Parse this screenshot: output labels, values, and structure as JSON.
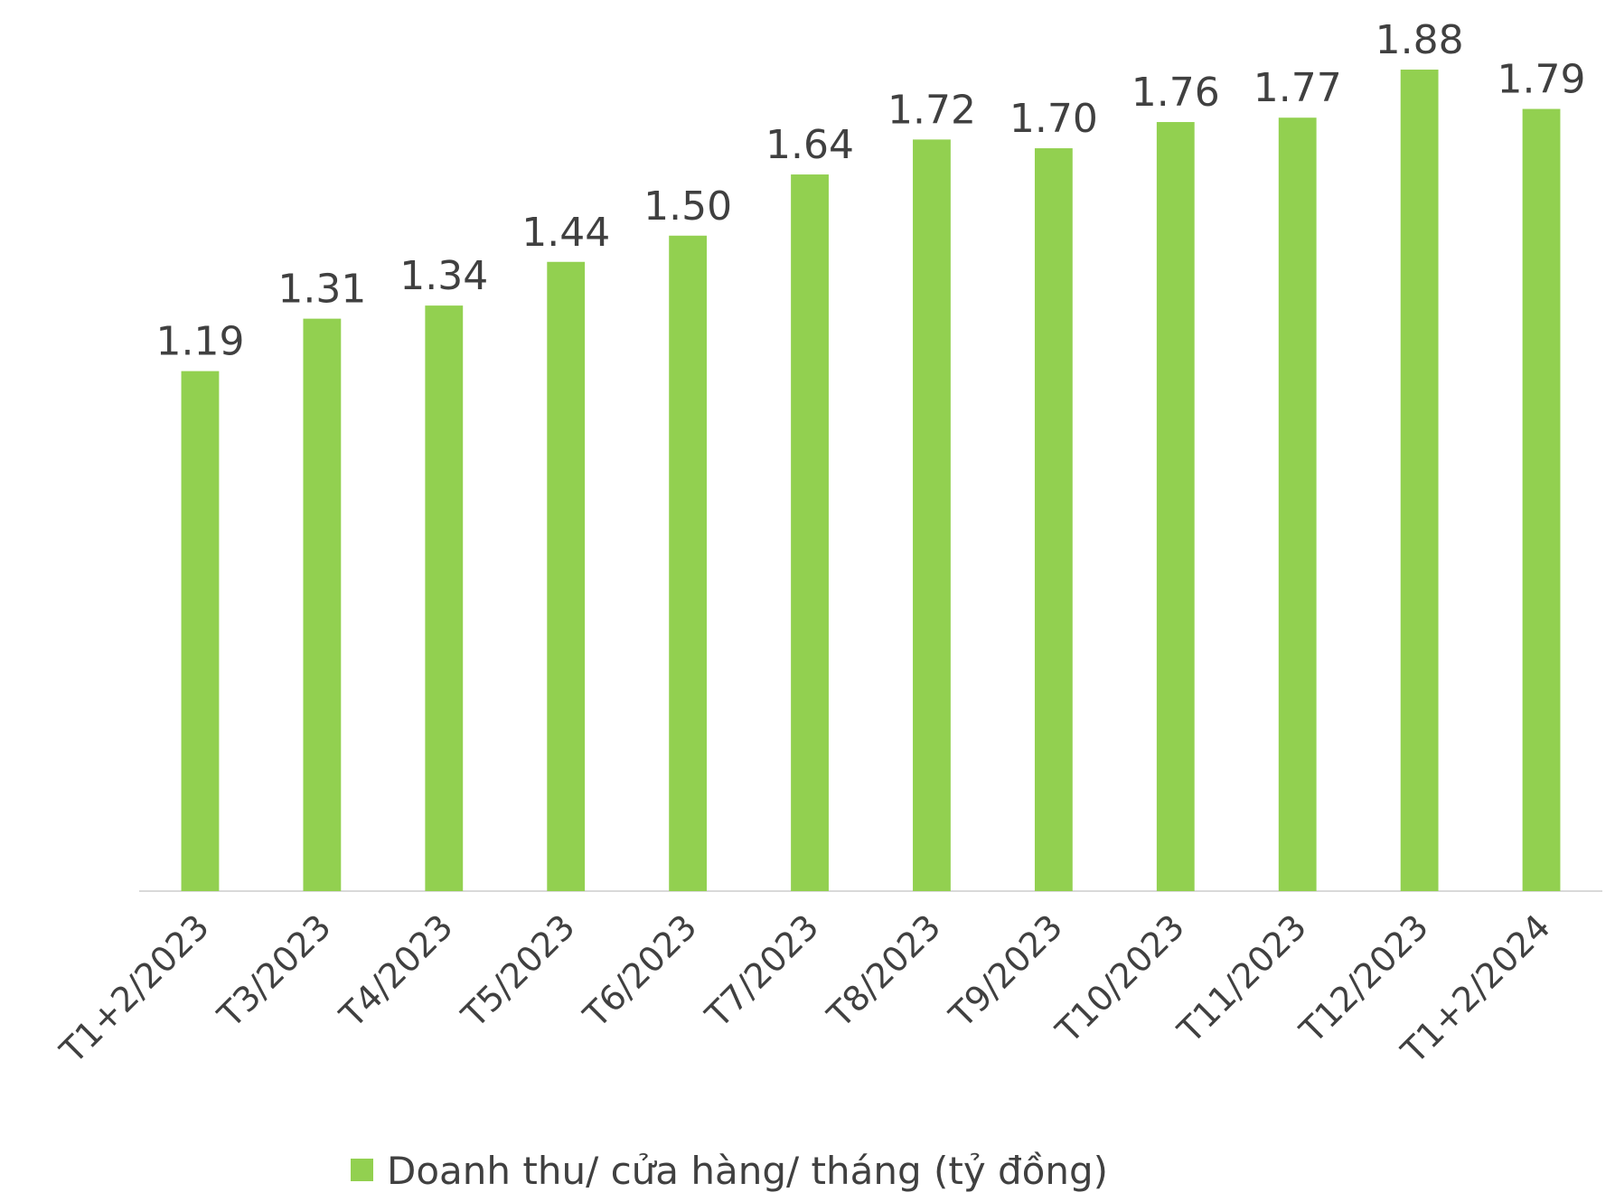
{
  "chart_data": {
    "type": "bar",
    "categories": [
      "T1+2/2023",
      "T3/2023",
      "T4/2023",
      "T5/2023",
      "T6/2023",
      "T7/2023",
      "T8/2023",
      "T9/2023",
      "T10/2023",
      "T11/2023",
      "T12/2023",
      "T1+2/2024"
    ],
    "series": [
      {
        "name": "Doanh thu/ cửa hàng/ tháng (tỷ đồng)",
        "color": "#92d050",
        "values": [
          1.19,
          1.31,
          1.34,
          1.44,
          1.5,
          1.64,
          1.72,
          1.7,
          1.76,
          1.77,
          1.88,
          1.79
        ],
        "value_labels": [
          "1.19",
          "1.31",
          "1.34",
          "1.44",
          "1.50",
          "1.64",
          "1.72",
          "1.70",
          "1.76",
          "1.77",
          "1.88",
          "1.79"
        ]
      }
    ],
    "ylim": [
      0,
      2
    ],
    "legend": "bottom"
  }
}
